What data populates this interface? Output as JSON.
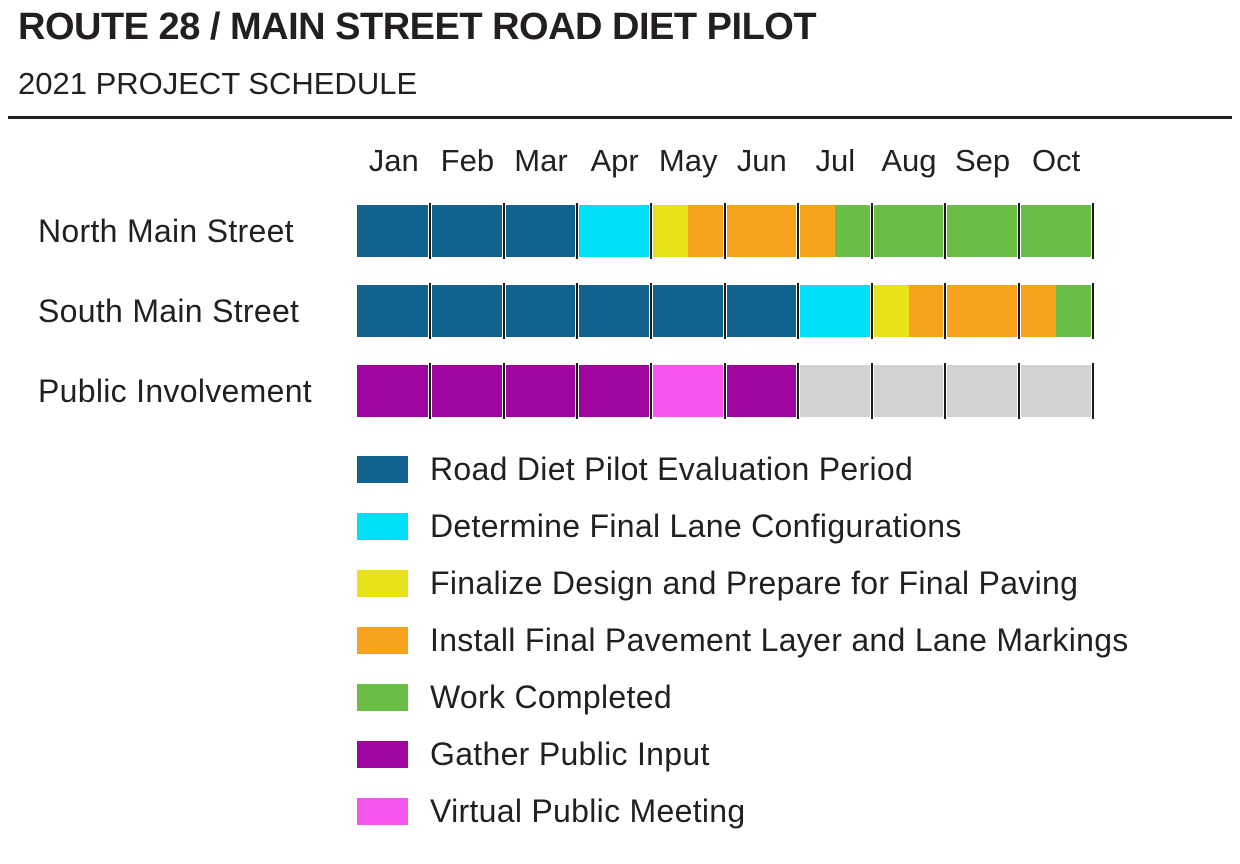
{
  "page": {
    "title": "ROUTE 28 / MAIN STREET ROAD DIET PILOT",
    "subtitle": "2021 PROJECT SCHEDULE"
  },
  "colors": {
    "blue": "#11628E",
    "cyan": "#00DFF7",
    "yellow": "#E8E21A",
    "orange": "#F7A21D",
    "green": "#6ABE46",
    "purple": "#A004A1",
    "pink": "#F655EF",
    "gray": "#D2D2D2",
    "tick": "#1A1A1A",
    "text": "#231F20"
  },
  "chart_data": {
    "type": "gantt",
    "title": "ROUTE 28 / MAIN STREET ROAD DIET PILOT",
    "subtitle": "2021 PROJECT SCHEDULE",
    "x_unit": "month",
    "xlim": [
      0,
      10
    ],
    "grid": false,
    "months": [
      "Jan",
      "Feb",
      "Mar",
      "Apr",
      "May",
      "Jun",
      "Jul",
      "Aug",
      "Sep",
      "Oct"
    ],
    "rows": [
      {
        "label": "North Main Street",
        "segments": [
          {
            "task": "Road Diet Pilot Evaluation Period",
            "color": "blue",
            "start_month": 0,
            "end_month": 3
          },
          {
            "task": "Determine Final Lane Configurations",
            "color": "cyan",
            "start_month": 3,
            "end_month": 4
          },
          {
            "task": "Finalize Design and Prepare for Final Paving",
            "color": "yellow",
            "start_month": 4,
            "end_month": 4.5
          },
          {
            "task": "Install Final Pavement Layer and Lane Markings",
            "color": "orange",
            "start_month": 4.5,
            "end_month": 6.5
          },
          {
            "task": "Work Completed",
            "color": "green",
            "start_month": 6.5,
            "end_month": 10
          }
        ]
      },
      {
        "label": "South Main Street",
        "segments": [
          {
            "task": "Road Diet Pilot Evaluation Period",
            "color": "blue",
            "start_month": 0,
            "end_month": 6
          },
          {
            "task": "Determine Final Lane Configurations",
            "color": "cyan",
            "start_month": 6,
            "end_month": 7
          },
          {
            "task": "Finalize Design and Prepare for Final Paving",
            "color": "yellow",
            "start_month": 7,
            "end_month": 7.5
          },
          {
            "task": "Install Final Pavement Layer and Lane Markings",
            "color": "orange",
            "start_month": 7.5,
            "end_month": 9.5
          },
          {
            "task": "Work Completed",
            "color": "green",
            "start_month": 9.5,
            "end_month": 10
          }
        ]
      },
      {
        "label": "Public Involvement",
        "segments": [
          {
            "task": "Gather Public Input",
            "color": "purple",
            "start_month": 0,
            "end_month": 4
          },
          {
            "task": "Virtual Public Meeting",
            "color": "pink",
            "start_month": 4,
            "end_month": 5
          },
          {
            "task": "Gather Public Input",
            "color": "purple",
            "start_month": 5,
            "end_month": 6
          },
          {
            "task": "",
            "color": "gray",
            "start_month": 6,
            "end_month": 10
          }
        ]
      }
    ],
    "legend_position": "bottom-left",
    "legend": [
      {
        "color": "blue",
        "label": "Road Diet Pilot Evaluation Period"
      },
      {
        "color": "cyan",
        "label": "Determine Final Lane Configurations"
      },
      {
        "color": "yellow",
        "label": "Finalize Design and Prepare for Final Paving"
      },
      {
        "color": "orange",
        "label": "Install Final Pavement Layer and Lane Markings"
      },
      {
        "color": "green",
        "label": "Work Completed"
      },
      {
        "color": "purple",
        "label": "Gather Public Input"
      },
      {
        "color": "pink",
        "label": "Virtual Public Meeting"
      }
    ]
  }
}
